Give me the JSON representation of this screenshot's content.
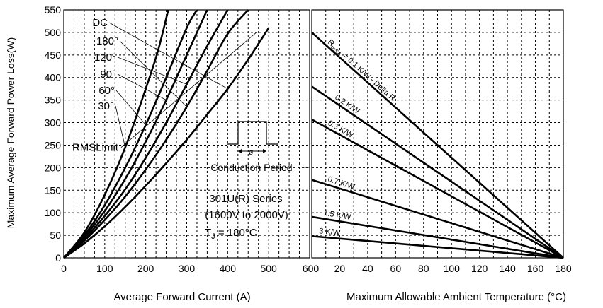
{
  "chart_data": [
    {
      "type": "line",
      "xlabel": "Average Forward Current (A)",
      "ylabel": "Maximum Average Forward Power Loss(W)",
      "xlim": [
        0,
        600
      ],
      "ylim": [
        0,
        550
      ],
      "xticks": [
        "0",
        "100",
        "200",
        "300",
        "400",
        "500",
        "600"
      ],
      "yticks": [
        "0",
        "50",
        "100",
        "150",
        "200",
        "250",
        "300",
        "350",
        "400",
        "450",
        "500",
        "550"
      ],
      "grid": "dashed",
      "series": [
        {
          "name": "DC",
          "x": [
            0,
            50,
            100,
            150,
            200,
            250,
            300,
            350,
            400,
            450,
            500
          ],
          "y": [
            0,
            32,
            70,
            113,
            160,
            210,
            262,
            318,
            375,
            440,
            510
          ]
        },
        {
          "name": "180°",
          "x": [
            0,
            50,
            100,
            150,
            200,
            250,
            300,
            350,
            400,
            450
          ],
          "y": [
            0,
            38,
            84,
            136,
            196,
            262,
            335,
            415,
            497,
            550
          ]
        },
        {
          "name": "120°",
          "x": [
            0,
            50,
            100,
            150,
            200,
            250,
            300,
            350,
            400
          ],
          "y": [
            0,
            42,
            93,
            152,
            222,
            300,
            385,
            470,
            550
          ]
        },
        {
          "name": "90°",
          "x": [
            0,
            50,
            100,
            150,
            200,
            250,
            300,
            350
          ],
          "y": [
            0,
            46,
            104,
            175,
            258,
            350,
            450,
            550
          ]
        },
        {
          "name": "60°",
          "x": [
            0,
            50,
            100,
            150,
            200,
            250,
            300,
            325
          ],
          "y": [
            0,
            50,
            117,
            200,
            295,
            400,
            510,
            550
          ]
        },
        {
          "name": "30°",
          "x": [
            0,
            50,
            100,
            150,
            200,
            230,
            255
          ],
          "y": [
            0,
            56,
            140,
            245,
            375,
            460,
            550
          ]
        }
      ],
      "rms_limit": {
        "label": "RMSLimit",
        "x": [
          140,
          470
        ],
        "y": [
          245,
          500
        ]
      },
      "annotations": {
        "conduction_period": "Conduction Period",
        "phi": "ø",
        "series_text": "301U(R) Series",
        "voltage_text": "(1600V to 2000V)",
        "tj_prefix": "T",
        "tj_sub": "J",
        "tj_suffix": " = 180°C"
      }
    },
    {
      "type": "line",
      "xlabel": "Maximum Allowable Ambient Temperature (°C)",
      "xlim": [
        0,
        180
      ],
      "ylim": [
        0,
        550
      ],
      "xticks": [
        "0",
        "20",
        "40",
        "60",
        "80",
        "100",
        "120",
        "140",
        "160",
        "180"
      ],
      "grid": "dashed",
      "series": [
        {
          "name": "RthSA = 0.1 K/W - Delta R",
          "x": [
            0,
            180
          ],
          "y": [
            500,
            0
          ]
        },
        {
          "name": "0.2 K/W",
          "x": [
            0,
            180
          ],
          "y": [
            380,
            0
          ]
        },
        {
          "name": "0.3 K/W",
          "x": [
            0,
            180
          ],
          "y": [
            307,
            0
          ]
        },
        {
          "name": "0.7 K/W",
          "x": [
            0,
            180
          ],
          "y": [
            173,
            0
          ]
        },
        {
          "name": "1.5 K/W",
          "x": [
            0,
            180
          ],
          "y": [
            91,
            0
          ]
        },
        {
          "name": "3 K/W",
          "x": [
            0,
            180
          ],
          "y": [
            48,
            0
          ]
        }
      ],
      "rth_prefix": "R",
      "rth_sub": "thSA",
      "rth_suffix": " = 0.1 K/W - Delta R"
    }
  ]
}
